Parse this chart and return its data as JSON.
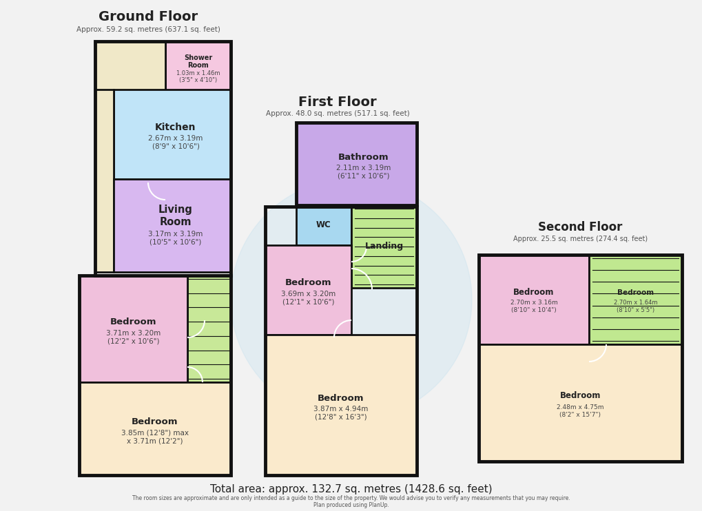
{
  "bg_color": "#f2f2f2",
  "wall_color": "#111111",
  "title_main": "Ground Floor",
  "title_sub": "Approx. 59.2 sq. metres (637.1 sq. feet)",
  "title_first": "First Floor",
  "title_first_sub": "Approx. 48.0 sq. metres (517.1 sq. feet)",
  "title_second": "Second Floor",
  "title_second_sub": "Approx. 25.5 sq. metres (274.4 sq. feet)",
  "footer": "Total area: approx. 132.7 sq. metres (1428.6 sq. feet)",
  "footer2": "The room sizes are approximate and are only intended as a guide to the size of the property. We would advise you to verify any measurements that you may require.",
  "footer3": "Plan produced using PlanUp.",
  "col_shower": "#f5c8e0",
  "col_bath_top": "#f0e8c8",
  "col_kitchen": "#c0e4f8",
  "col_living": "#d8b8f0",
  "col_bed_pink": "#f0c0dc",
  "col_bed_cream": "#faeacc",
  "col_green": "#c8e898",
  "col_bathroom": "#c8a8e8",
  "col_wc": "#a8d8f0",
  "col_landing": "#c0e890",
  "col_wall_fill": "#f2f2f2"
}
